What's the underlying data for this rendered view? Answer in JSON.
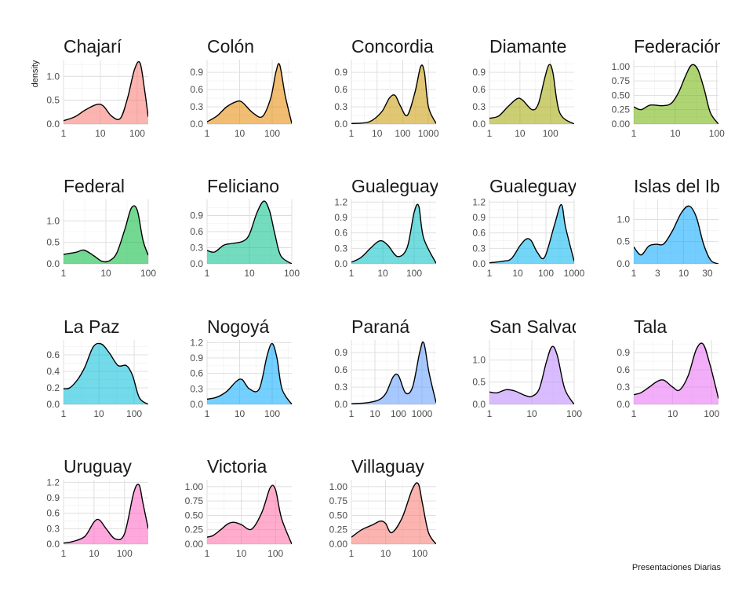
{
  "chart_data": {
    "type": "area",
    "xlabel": "Presentaciones Diarias",
    "ylabel": "density",
    "x_scale": "log10",
    "grid": true,
    "panels": [
      {
        "name": "Chajarí",
        "color": "#F8766D",
        "xlim": [
          1,
          200
        ],
        "ylim": [
          0,
          1.35
        ],
        "xticks": [
          1,
          10,
          100
        ],
        "xtick_labels": [
          "1",
          "10",
          "100"
        ],
        "yticks": [
          0,
          0.5,
          1.0
        ],
        "ytick_labels": [
          "0.0",
          "0.5",
          "1.0"
        ],
        "x": [
          1,
          2,
          4,
          8,
          12,
          20,
          35,
          55,
          85,
          120,
          160,
          200
        ],
        "y": [
          0.07,
          0.15,
          0.3,
          0.41,
          0.38,
          0.17,
          0.12,
          0.55,
          1.15,
          1.28,
          0.7,
          0.15
        ]
      },
      {
        "name": "Colón",
        "color": "#E58700",
        "xlim": [
          1,
          400
        ],
        "ylim": [
          0,
          1.12
        ],
        "xticks": [
          1,
          10,
          100
        ],
        "xtick_labels": [
          "1",
          "10",
          "100"
        ],
        "yticks": [
          0,
          0.3,
          0.6,
          0.9
        ],
        "ytick_labels": [
          "0.0",
          "0.3",
          "0.6",
          "0.9"
        ],
        "x": [
          1,
          2,
          4,
          8,
          12,
          25,
          50,
          90,
          130,
          170,
          250,
          400
        ],
        "y": [
          0.04,
          0.14,
          0.3,
          0.39,
          0.38,
          0.2,
          0.13,
          0.45,
          0.9,
          1.03,
          0.5,
          0.01
        ]
      },
      {
        "name": "Concordia",
        "color": "#C99800",
        "xlim": [
          1,
          2000
        ],
        "ylim": [
          0,
          1.12
        ],
        "xticks": [
          1,
          10,
          100,
          1000
        ],
        "xtick_labels": [
          "1",
          "10",
          "100",
          "1000"
        ],
        "yticks": [
          0,
          0.3,
          0.6,
          0.9
        ],
        "ytick_labels": [
          "0.0",
          "0.3",
          "0.6",
          "0.9"
        ],
        "x": [
          1,
          5,
          15,
          30,
          50,
          80,
          150,
          300,
          500,
          700,
          1000,
          2000
        ],
        "y": [
          0.01,
          0.04,
          0.21,
          0.45,
          0.5,
          0.32,
          0.15,
          0.55,
          1.0,
          0.9,
          0.3,
          0.01
        ]
      },
      {
        "name": "Diamante",
        "color": "#A3A500",
        "xlim": [
          1,
          600
        ],
        "ylim": [
          0,
          1.12
        ],
        "xticks": [
          1,
          10,
          100
        ],
        "xtick_labels": [
          "1",
          "10",
          "100"
        ],
        "yticks": [
          0,
          0.3,
          0.6,
          0.9
        ],
        "ytick_labels": [
          "0.0",
          "0.3",
          "0.6",
          "0.9"
        ],
        "x": [
          1,
          2,
          4,
          8,
          12,
          25,
          40,
          65,
          90,
          120,
          200,
          600
        ],
        "y": [
          0.1,
          0.14,
          0.3,
          0.44,
          0.42,
          0.25,
          0.35,
          0.8,
          1.03,
          0.9,
          0.2,
          0.0
        ]
      },
      {
        "name": "Federación",
        "color": "#6BB100",
        "xlim": [
          1,
          110
        ],
        "ylim": [
          0,
          1.12
        ],
        "xticks": [
          1,
          10,
          100
        ],
        "xtick_labels": [
          "1",
          "10",
          "100"
        ],
        "yticks": [
          0,
          0.25,
          0.5,
          0.75,
          1.0
        ],
        "ytick_labels": [
          "0.00",
          "0.25",
          "0.50",
          "0.75",
          "1.00"
        ],
        "x": [
          1,
          1.5,
          2.5,
          5,
          8,
          12,
          18,
          25,
          35,
          50,
          70,
          110
        ],
        "y": [
          0.3,
          0.25,
          0.33,
          0.32,
          0.36,
          0.55,
          0.85,
          1.03,
          0.95,
          0.6,
          0.2,
          0.0
        ]
      },
      {
        "name": "Federal",
        "color": "#00BA38",
        "xlim": [
          1,
          100
        ],
        "ylim": [
          0,
          1.5
        ],
        "xticks": [
          1,
          10,
          100
        ],
        "xtick_labels": [
          "1",
          "10",
          "100"
        ],
        "yticks": [
          0,
          0.5,
          1.0
        ],
        "ytick_labels": [
          "0.0",
          "0.5",
          "1.0"
        ],
        "x": [
          1,
          2,
          3,
          5,
          8,
          12,
          18,
          28,
          40,
          55,
          75,
          100
        ],
        "y": [
          0.22,
          0.27,
          0.32,
          0.2,
          0.06,
          0.07,
          0.25,
          0.8,
          1.3,
          1.25,
          0.55,
          0.2
        ]
      },
      {
        "name": "Feliciano",
        "color": "#00C08B",
        "xlim": [
          1,
          100
        ],
        "ylim": [
          0,
          1.2
        ],
        "xticks": [
          1,
          10,
          100
        ],
        "xtick_labels": [
          "1",
          "10",
          "100"
        ],
        "yticks": [
          0,
          0.3,
          0.6,
          0.9
        ],
        "ytick_labels": [
          "0.0",
          "0.3",
          "0.6",
          "0.9"
        ],
        "x": [
          1,
          1.5,
          2.5,
          4,
          7,
          10,
          15,
          22,
          30,
          40,
          55,
          100
        ],
        "y": [
          0.25,
          0.22,
          0.35,
          0.38,
          0.42,
          0.55,
          0.95,
          1.17,
          0.98,
          0.55,
          0.15,
          0.0
        ]
      },
      {
        "name": "Gualeguay",
        "color": "#00BFC4",
        "xlim": [
          1,
          500
        ],
        "ylim": [
          0,
          1.25
        ],
        "xticks": [
          1,
          10,
          100
        ],
        "xtick_labels": [
          "1",
          "10",
          "100"
        ],
        "yticks": [
          0,
          0.3,
          0.6,
          0.9,
          1.2
        ],
        "ytick_labels": [
          "0.0",
          "0.3",
          "0.6",
          "0.9",
          "1.2"
        ],
        "x": [
          1,
          2,
          4,
          7,
          10,
          15,
          30,
          60,
          100,
          140,
          200,
          500
        ],
        "y": [
          0.03,
          0.12,
          0.3,
          0.43,
          0.44,
          0.35,
          0.14,
          0.32,
          1.0,
          1.12,
          0.5,
          0.01
        ]
      },
      {
        "name": "Gualeguaychú",
        "color": "#00B4EF",
        "xlim": [
          1,
          1000
        ],
        "ylim": [
          0,
          1.25
        ],
        "xticks": [
          1,
          10,
          100,
          1000
        ],
        "xtick_labels": [
          "1",
          "10",
          "100",
          "1000"
        ],
        "yticks": [
          0,
          0.3,
          0.6,
          0.9,
          1.2
        ],
        "ytick_labels": [
          "0.0",
          "0.3",
          "0.6",
          "0.9",
          "1.2"
        ],
        "x": [
          1,
          3,
          6,
          12,
          20,
          30,
          50,
          90,
          200,
          350,
          500,
          1000
        ],
        "y": [
          0.02,
          0.05,
          0.1,
          0.35,
          0.48,
          0.45,
          0.22,
          0.13,
          0.75,
          1.15,
          0.7,
          0.05
        ]
      },
      {
        "name": "Islas del Ibicuy",
        "color": "#00A5FF",
        "xlim": [
          1,
          50
        ],
        "ylim": [
          0,
          1.45
        ],
        "xticks": [
          1,
          3,
          10,
          30
        ],
        "xtick_labels": [
          "1",
          "3",
          "10",
          "30"
        ],
        "yticks": [
          0,
          0.5,
          1.0
        ],
        "ytick_labels": [
          "0.0",
          "0.5",
          "1.0"
        ],
        "x": [
          1,
          1.4,
          2,
          2.8,
          4,
          6,
          9,
          13,
          18,
          25,
          35,
          50
        ],
        "y": [
          0.38,
          0.2,
          0.4,
          0.44,
          0.45,
          0.75,
          1.15,
          1.3,
          1.05,
          0.45,
          0.08,
          0.0
        ]
      },
      {
        "name": "La Paz",
        "color": "#00BCD8",
        "xlim": [
          1,
          250
        ],
        "ylim": [
          0,
          0.78
        ],
        "xticks": [
          1,
          10,
          100
        ],
        "xtick_labels": [
          "1",
          "10",
          "100"
        ],
        "yticks": [
          0,
          0.2,
          0.4,
          0.6
        ],
        "ytick_labels": [
          "0.0",
          "0.2",
          "0.4",
          "0.6"
        ],
        "x": [
          1,
          1.5,
          2.5,
          4,
          7,
          12,
          20,
          35,
          60,
          90,
          140,
          250
        ],
        "y": [
          0.19,
          0.2,
          0.3,
          0.45,
          0.7,
          0.73,
          0.62,
          0.47,
          0.47,
          0.35,
          0.08,
          0.0
        ]
      },
      {
        "name": "Nogoyá",
        "color": "#00A9FF",
        "xlim": [
          1,
          400
        ],
        "ylim": [
          0,
          1.25
        ],
        "xticks": [
          1,
          10,
          100
        ],
        "xtick_labels": [
          "1",
          "10",
          "100"
        ],
        "yticks": [
          0,
          0.3,
          0.6,
          0.9,
          1.2
        ],
        "ytick_labels": [
          "0.0",
          "0.3",
          "0.6",
          "0.9",
          "1.2"
        ],
        "x": [
          1,
          2,
          4,
          8,
          12,
          20,
          40,
          70,
          100,
          140,
          200,
          400
        ],
        "y": [
          0.1,
          0.14,
          0.25,
          0.45,
          0.48,
          0.3,
          0.3,
          0.95,
          1.18,
          0.9,
          0.3,
          0.0
        ]
      },
      {
        "name": "Paraná",
        "color": "#619CFF",
        "xlim": [
          1,
          4000
        ],
        "ylim": [
          0,
          1.12
        ],
        "xticks": [
          1,
          10,
          100,
          1000
        ],
        "xtick_labels": [
          "1",
          "10",
          "100",
          "1000"
        ],
        "yticks": [
          0,
          0.3,
          0.6,
          0.9
        ],
        "ytick_labels": [
          "0.0",
          "0.3",
          "0.6",
          "0.9"
        ],
        "x": [
          1,
          5,
          15,
          30,
          60,
          100,
          200,
          400,
          800,
          1200,
          2000,
          4000
        ],
        "y": [
          0.01,
          0.03,
          0.08,
          0.2,
          0.48,
          0.5,
          0.2,
          0.3,
          0.9,
          1.07,
          0.55,
          0.03
        ]
      },
      {
        "name": "San Salvador",
        "color": "#B983FF",
        "xlim": [
          1,
          100
        ],
        "ylim": [
          0,
          1.45
        ],
        "xticks": [
          1,
          10,
          100
        ],
        "xtick_labels": [
          "1",
          "10",
          "100"
        ],
        "yticks": [
          0,
          0.5,
          1.0
        ],
        "ytick_labels": [
          "0.0",
          "0.5",
          "1.0"
        ],
        "x": [
          1,
          1.5,
          2.5,
          4,
          7,
          10,
          15,
          22,
          30,
          40,
          60,
          100
        ],
        "y": [
          0.28,
          0.26,
          0.33,
          0.3,
          0.2,
          0.18,
          0.35,
          0.95,
          1.3,
          1.1,
          0.35,
          0.0
        ]
      },
      {
        "name": "Tala",
        "color": "#E76BF3",
        "xlim": [
          1,
          150
        ],
        "ylim": [
          0,
          1.12
        ],
        "xticks": [
          1,
          10,
          100
        ],
        "xtick_labels": [
          "1",
          "10",
          "100"
        ],
        "yticks": [
          0,
          0.3,
          0.6,
          0.9
        ],
        "ytick_labels": [
          "0.0",
          "0.3",
          "0.6",
          "0.9"
        ],
        "x": [
          1,
          1.5,
          2.5,
          4,
          6,
          10,
          15,
          25,
          40,
          60,
          90,
          150
        ],
        "y": [
          0.17,
          0.2,
          0.3,
          0.4,
          0.42,
          0.3,
          0.25,
          0.5,
          0.95,
          1.05,
          0.7,
          0.1
        ]
      },
      {
        "name": "Uruguay",
        "color": "#FF61C3",
        "xlim": [
          1,
          600
        ],
        "ylim": [
          0,
          1.25
        ],
        "xticks": [
          1,
          10,
          100
        ],
        "xtick_labels": [
          "1",
          "10",
          "100"
        ],
        "yticks": [
          0,
          0.3,
          0.6,
          0.9,
          1.2
        ],
        "ytick_labels": [
          "0.0",
          "0.3",
          "0.6",
          "0.9",
          "1.2"
        ],
        "x": [
          1,
          2,
          5,
          10,
          15,
          25,
          50,
          100,
          200,
          300,
          400,
          600
        ],
        "y": [
          0.02,
          0.05,
          0.15,
          0.43,
          0.47,
          0.3,
          0.1,
          0.2,
          1.0,
          1.15,
          0.8,
          0.3
        ]
      },
      {
        "name": "Victoria",
        "color": "#FF67A4",
        "xlim": [
          1,
          300
        ],
        "ylim": [
          0,
          1.12
        ],
        "xticks": [
          1,
          10,
          100
        ],
        "xtick_labels": [
          "1",
          "10",
          "100"
        ],
        "yticks": [
          0,
          0.25,
          0.5,
          0.75,
          1.0
        ],
        "ytick_labels": [
          "0.00",
          "0.25",
          "0.50",
          "0.75",
          "1.00"
        ],
        "x": [
          1,
          1.5,
          2.5,
          4,
          6,
          10,
          20,
          40,
          70,
          100,
          150,
          300
        ],
        "y": [
          0.12,
          0.15,
          0.25,
          0.35,
          0.38,
          0.34,
          0.26,
          0.55,
          0.98,
          0.95,
          0.45,
          0.0
        ]
      },
      {
        "name": "Villaguay",
        "color": "#F8766D",
        "xlim": [
          1,
          300
        ],
        "ylim": [
          0,
          1.12
        ],
        "xticks": [
          1,
          10,
          100
        ],
        "xtick_labels": [
          "1",
          "10",
          "100"
        ],
        "yticks": [
          0,
          0.25,
          0.5,
          0.75,
          1.0
        ],
        "ytick_labels": [
          "0.00",
          "0.25",
          "0.50",
          "0.75",
          "1.00"
        ],
        "x": [
          1,
          2,
          4,
          7,
          10,
          15,
          30,
          60,
          90,
          120,
          180,
          300
        ],
        "y": [
          0.12,
          0.25,
          0.33,
          0.4,
          0.36,
          0.2,
          0.45,
          0.95,
          1.05,
          0.7,
          0.2,
          0.0
        ]
      }
    ]
  }
}
